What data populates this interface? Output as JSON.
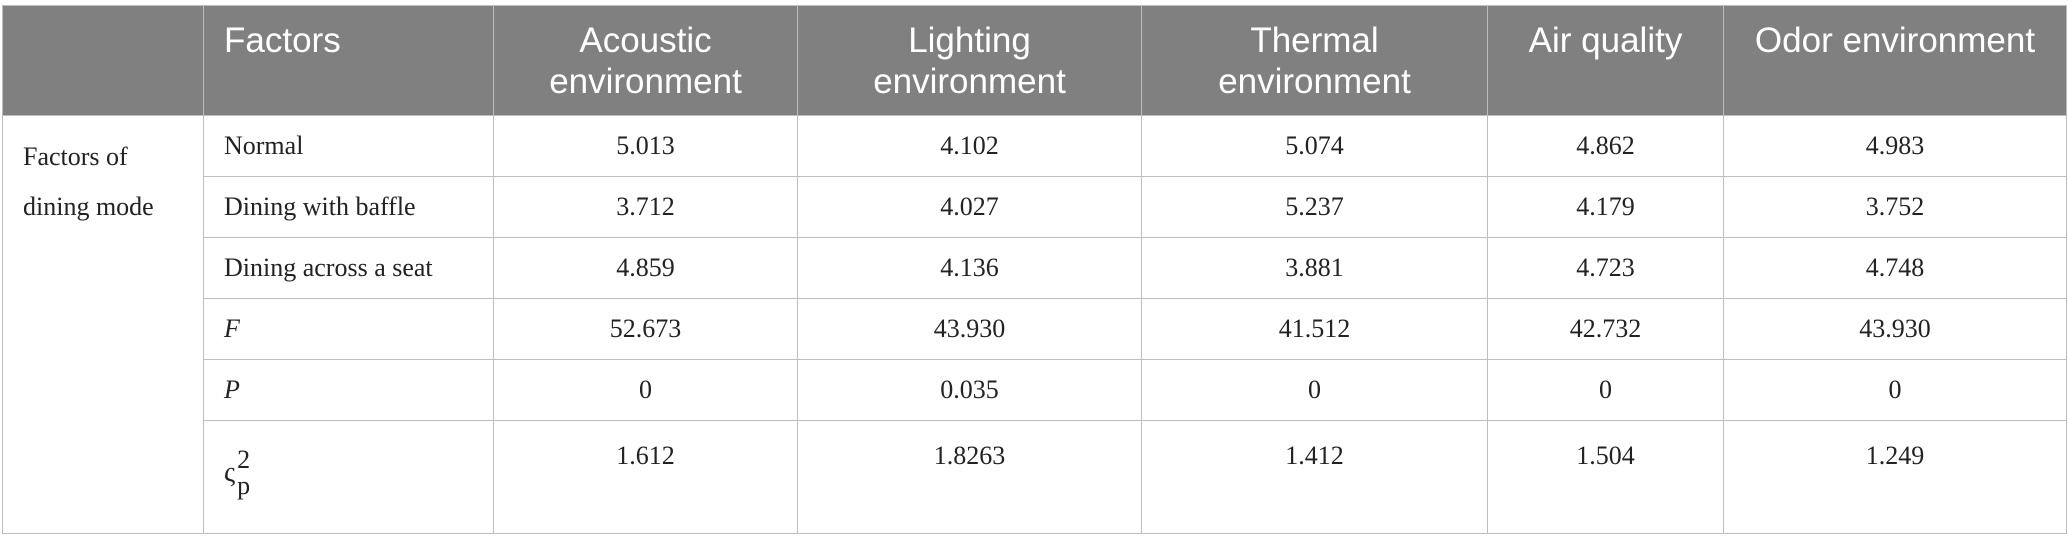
{
  "table": {
    "headers": [
      "",
      "Factors",
      "Acoustic environment",
      "Lighting environment",
      "Thermal environment",
      "Air quality",
      "Odor environment"
    ],
    "group_label": "Factors of dining mode",
    "rows": [
      {
        "label": "Normal",
        "values": [
          "5.013",
          "4.102",
          "5.074",
          "4.862",
          "4.983"
        ]
      },
      {
        "label": "Dining with baffle",
        "values": [
          "3.712",
          "4.027",
          "5.237",
          "4.179",
          "3.752"
        ]
      },
      {
        "label": "Dining across a seat",
        "values": [
          "4.859",
          "4.136",
          "3.881",
          "4.723",
          "4.748"
        ]
      },
      {
        "label": "F",
        "values": [
          "52.673",
          "43.930",
          "41.512",
          "42.732",
          "43.930"
        ]
      },
      {
        "label": "P",
        "values": [
          "0",
          "0.035",
          "0",
          "0",
          "0"
        ]
      },
      {
        "label_symbol": "ς",
        "label_sup": "2",
        "label_sub": "p",
        "values": [
          "1.612",
          "1.8263",
          "1.412",
          "1.504",
          "1.249"
        ]
      }
    ]
  }
}
